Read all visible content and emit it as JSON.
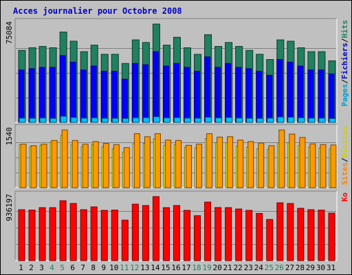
{
  "chart_data": {
    "type": "bar",
    "title": "Acces journalier pour Octobre 2008",
    "categories": [
      "1",
      "2",
      "3",
      "4",
      "5",
      "6",
      "7",
      "8",
      "9",
      "10",
      "11",
      "12",
      "13",
      "14",
      "15",
      "16",
      "17",
      "18",
      "19",
      "20",
      "21",
      "22",
      "23",
      "24",
      "25",
      "26",
      "27",
      "28",
      "29",
      "30",
      "31"
    ],
    "weekend_days": [
      "4",
      "5",
      "11",
      "12",
      "18",
      "19",
      "25",
      "26"
    ],
    "grid": true,
    "panels": [
      {
        "id": "top",
        "ymax_label": "75084",
        "ymax": 75084,
        "axis_labels": [
          {
            "text": "Pages",
            "color": "#00a0d0"
          },
          {
            "text": "/",
            "color": "#000000"
          },
          {
            "text": "Fichiers",
            "color": "#0000c0"
          },
          {
            "text": "/",
            "color": "#000000"
          },
          {
            "text": "Hits",
            "color": "#208060"
          }
        ],
        "series": [
          {
            "name": "Hits",
            "color": "#208060",
            "values": [
              55000,
              57000,
              58000,
              57000,
              69000,
              62000,
              54000,
              59000,
              52000,
              52000,
              45000,
              63000,
              61000,
              75084,
              59000,
              65000,
              57000,
              52000,
              67000,
              58000,
              61000,
              58000,
              55000,
              52000,
              48000,
              63000,
              62000,
              57000,
              54000,
              54000,
              47000
            ]
          },
          {
            "name": "Fichiers",
            "color": "#0000ff",
            "values": [
              40000,
              41000,
              42000,
              42000,
              51000,
              46000,
              40000,
              43000,
              39000,
              39000,
              33000,
              45000,
              44000,
              54000,
              43000,
              45000,
              42000,
              39000,
              50000,
              42000,
              45000,
              42000,
              41000,
              39000,
              36000,
              48000,
              46000,
              43000,
              40000,
              40000,
              37000
            ]
          },
          {
            "name": "Pages",
            "color": "#00bfff",
            "values": [
              3200,
              3100,
              3300,
              3000,
              4600,
              3700,
              3200,
              3400,
              3100,
              3100,
              3000,
              3500,
              3600,
              4300,
              3400,
              3600,
              3200,
              3100,
              3900,
              3400,
              3700,
              3300,
              3100,
              3000,
              3200,
              4100,
              3900,
              3500,
              3200,
              3200,
              2900
            ]
          }
        ]
      },
      {
        "id": "middle",
        "ymax_label": "1540",
        "ymax": 1540,
        "axis_labels": [
          {
            "text": "Sites",
            "color": "#ff8000"
          },
          {
            "text": "/",
            "color": "#000000"
          },
          {
            "text": "Visites",
            "color": "#d0d000"
          }
        ],
        "series": [
          {
            "name": "Visites",
            "color": "#ffff00",
            "values": [
              1140,
              1090,
              1130,
              1220,
              1390,
              1140,
              1090,
              1150,
              1090,
              1040,
              950,
              1170,
              1180,
              1300,
              1130,
              1150,
              1080,
              1060,
              1310,
              1200,
              1200,
              1110,
              1080,
              1040,
              1020,
              1200,
              1200,
              1130,
              1090,
              1060,
              1040
            ]
          },
          {
            "name": "Sites",
            "color": "#ff9900",
            "values": [
              1160,
              1120,
              1160,
              1260,
              1540,
              1260,
              1160,
              1230,
              1180,
              1150,
              1070,
              1440,
              1360,
              1440,
              1270,
              1260,
              1130,
              1160,
              1440,
              1350,
              1360,
              1270,
              1230,
              1190,
              1120,
              1540,
              1430,
              1340,
              1170,
              1150,
              1140
            ]
          }
        ]
      },
      {
        "id": "bottom",
        "ymax_label": "936197",
        "ymax": 936197,
        "axis_labels": [
          {
            "text": "Ko",
            "color": "#ff0000"
          }
        ],
        "series": [
          {
            "name": "Ko",
            "color": "#ff0000",
            "values": [
              745000,
              740000,
              775000,
              775000,
              876000,
              836000,
              745000,
              786000,
              735000,
              740000,
              592000,
              826000,
              806000,
              936197,
              775000,
              806000,
              735000,
              657000,
              856000,
              776000,
              775000,
              755000,
              735000,
              690000,
              602000,
              846000,
              836000,
              765000,
              745000,
              740000,
              695000
            ]
          }
        ]
      }
    ]
  }
}
